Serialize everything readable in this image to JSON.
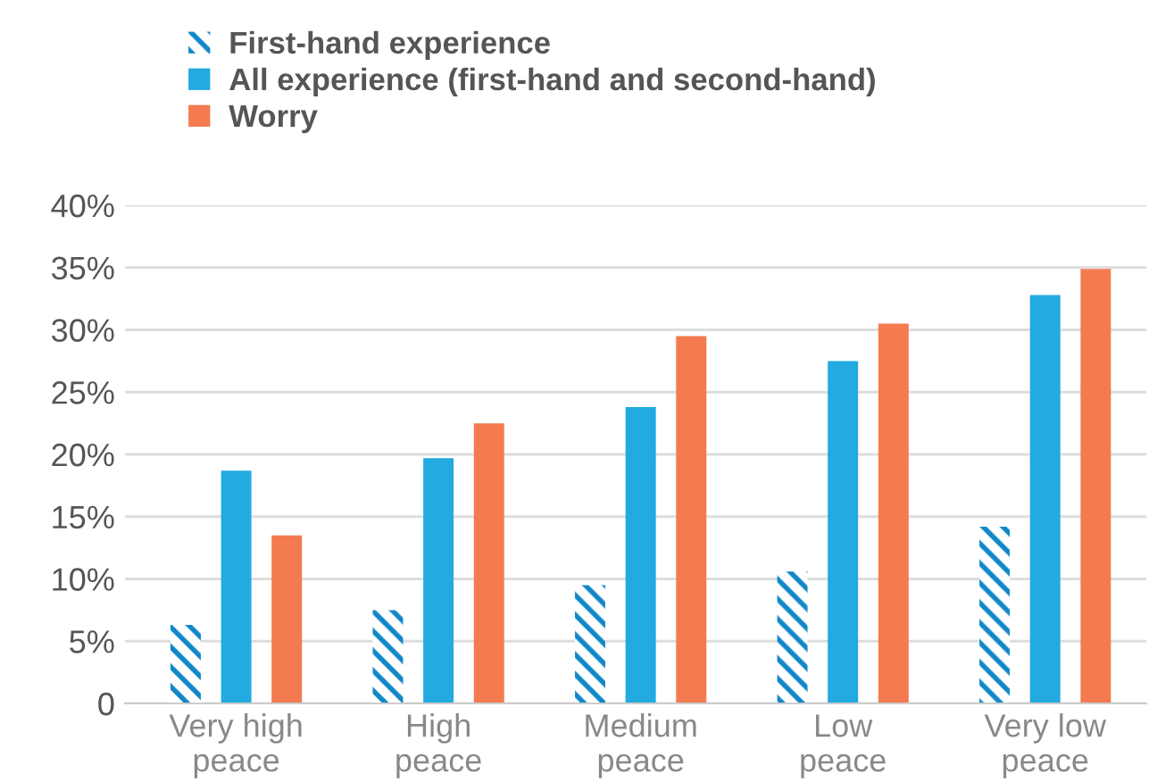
{
  "chart_data": {
    "type": "bar",
    "categories": [
      "Very high\npeace",
      "High\npeace",
      "Medium\npeace",
      "Low\npeace",
      "Very low\npeace"
    ],
    "series": [
      {
        "name": "First-hand experience",
        "color": "#1087c8",
        "values": [
          6.3,
          7.5,
          9.5,
          10.6,
          14.2
        ]
      },
      {
        "name": "All experience (first-hand and second-hand)",
        "color": "#22aae1",
        "values": [
          18.7,
          19.7,
          23.8,
          27.5,
          32.8
        ]
      },
      {
        "name": "Worry",
        "color": "#f47b4f",
        "values": [
          13.5,
          22.5,
          29.5,
          30.5,
          34.9
        ]
      }
    ],
    "ylim": [
      0,
      40
    ],
    "yticks": [
      {
        "value": 0,
        "label": "0"
      },
      {
        "value": 5,
        "label": "5%"
      },
      {
        "value": 10,
        "label": "10%"
      },
      {
        "value": 15,
        "label": "15%"
      },
      {
        "value": 20,
        "label": "20%"
      },
      {
        "value": 25,
        "label": "25%"
      },
      {
        "value": 30,
        "label": "30%"
      },
      {
        "value": 35,
        "label": "35%"
      },
      {
        "value": 40,
        "label": "40%"
      }
    ],
    "grid": "y",
    "legend": "top left"
  }
}
